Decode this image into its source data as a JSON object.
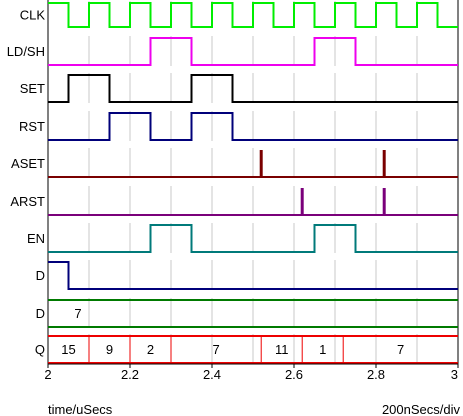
{
  "signals": [
    {
      "label": "CLK",
      "color": "#00ee00",
      "kind": "digital",
      "edges": [
        2.0,
        2.05,
        2.1,
        2.15,
        2.2,
        2.25,
        2.3,
        2.35,
        2.4,
        2.45,
        2.5,
        2.55,
        2.6,
        2.65,
        2.7,
        2.75,
        2.8,
        2.85,
        2.9,
        2.95,
        3.0
      ],
      "levels": [
        1,
        0,
        1,
        0,
        1,
        0,
        1,
        0,
        1,
        0,
        1,
        0,
        1,
        0,
        1,
        0,
        1,
        0,
        1,
        0
      ]
    },
    {
      "label": "LD/SH",
      "color": "#ee00ee",
      "kind": "digital",
      "edges": [
        2.0,
        2.25,
        2.35,
        2.65,
        2.75,
        3.0
      ],
      "levels": [
        0,
        1,
        0,
        1,
        0
      ]
    },
    {
      "label": "SET",
      "color": "#000000",
      "kind": "digital",
      "edges": [
        2.0,
        2.05,
        2.15,
        2.35,
        2.45,
        3.0
      ],
      "levels": [
        0,
        1,
        0,
        1,
        0
      ]
    },
    {
      "label": "RST",
      "color": "#00007a",
      "kind": "digital",
      "edges": [
        2.0,
        2.15,
        2.25,
        2.35,
        2.45,
        3.0
      ],
      "levels": [
        0,
        1,
        0,
        1,
        0
      ]
    },
    {
      "label": "ASET",
      "color": "#7a0000",
      "kind": "spikes",
      "spikes": [
        2.52,
        2.82
      ]
    },
    {
      "label": "ARST",
      "color": "#7a007a",
      "kind": "spikes",
      "spikes": [
        2.62,
        2.82
      ]
    },
    {
      "label": "EN",
      "color": "#007a7a",
      "kind": "digital",
      "edges": [
        2.0,
        2.25,
        2.35,
        2.65,
        2.75,
        3.0
      ],
      "levels": [
        0,
        1,
        0,
        1,
        0
      ]
    },
    {
      "label": "D",
      "color": "#00007a",
      "kind": "digital",
      "edges": [
        2.0,
        2.05,
        3.0
      ],
      "levels": [
        1,
        0
      ]
    },
    {
      "label": "D",
      "color": "#007a00",
      "kind": "bus",
      "edges": [
        2.0,
        3.0
      ],
      "values": [
        "7"
      ]
    },
    {
      "label": "Q",
      "color": "#ee0000",
      "kind": "bus",
      "edges": [
        2.0,
        2.1,
        2.2,
        2.3,
        2.52,
        2.62,
        2.72,
        3.0
      ],
      "values": [
        "15",
        "9",
        "2",
        "7",
        "11",
        "1",
        "7"
      ]
    }
  ],
  "axis": {
    "ticks": [
      "2",
      "2.2",
      "2.4",
      "2.6",
      "2.8",
      "3"
    ],
    "tick_values": [
      2.0,
      2.2,
      2.4,
      2.6,
      2.8,
      3.0
    ],
    "range": [
      2.0,
      3.0
    ],
    "xlabel": "time/uSecs",
    "scale_label": "200nSecs/div"
  },
  "grid_interval": 0.1
}
